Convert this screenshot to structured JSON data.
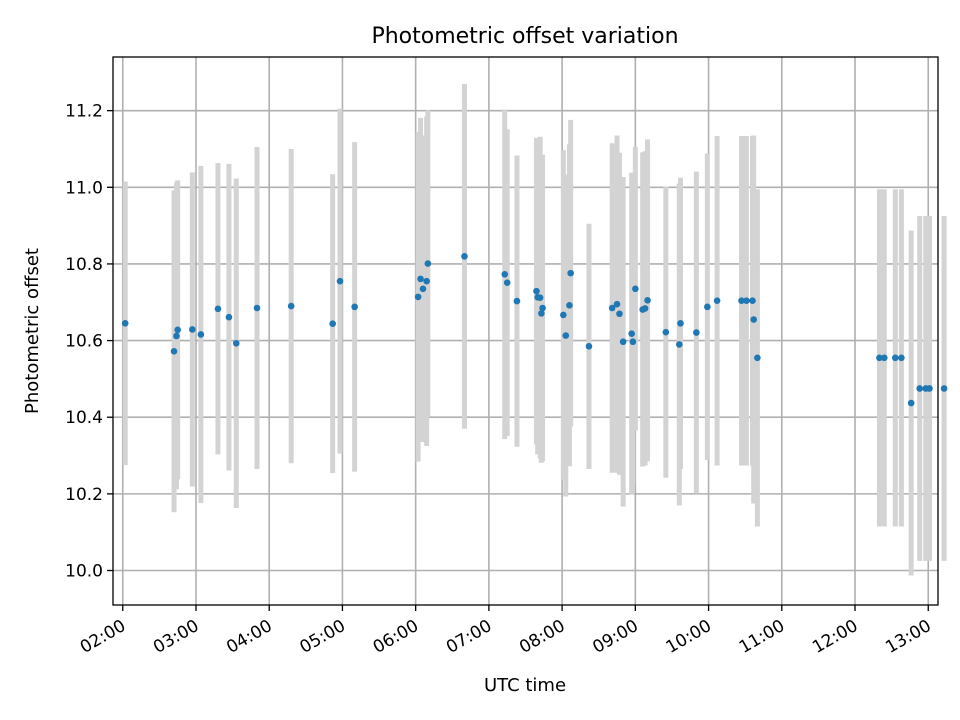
{
  "chart_data": {
    "type": "scatter",
    "title": "Photometric offset variation",
    "xlabel": "UTC time",
    "ylabel": "Photometric offset",
    "x_tick_labels": [
      "02:00",
      "03:00",
      "04:00",
      "05:00",
      "06:00",
      "07:00",
      "08:00",
      "09:00",
      "10:00",
      "11:00",
      "12:00",
      "13:00"
    ],
    "y_tick_labels": [
      "10.0",
      "10.2",
      "10.4",
      "10.6",
      "10.8",
      "11.0",
      "11.2"
    ],
    "xlim": [
      "01:52",
      "13:08"
    ],
    "ylim": [
      9.91,
      11.34
    ],
    "grid": true,
    "colors": {
      "points": "#1f77b4",
      "errorbars": "#d3d3d3",
      "grid": "#b0b0b0"
    },
    "series": [
      {
        "x": [
          "02:02",
          "02:42",
          "02:44",
          "02:45",
          "02:57",
          "03:04",
          "03:18",
          "03:27",
          "03:33",
          "03:50",
          "04:18",
          "04:52",
          "04:58",
          "05:10",
          "06:02",
          "06:04",
          "06:06",
          "06:09",
          "06:10",
          "06:40",
          "07:13",
          "07:15",
          "07:23",
          "07:39",
          "07:40",
          "07:42",
          "07:43",
          "07:44",
          "08:01",
          "08:03",
          "08:06",
          "08:07",
          "08:22",
          "08:41",
          "08:45",
          "08:47",
          "08:50",
          "08:57",
          "08:58",
          "09:00",
          "09:06",
          "09:08",
          "09:10",
          "09:25",
          "09:36",
          "09:37",
          "09:50",
          "09:59",
          "10:07",
          "10:27",
          "10:31",
          "10:36",
          "10:37",
          "10:40",
          "12:20",
          "12:24",
          "12:33",
          "12:38",
          "12:46",
          "12:53",
          "12:58",
          "13:01",
          "13:13"
        ],
        "y": [
          10.645,
          10.572,
          10.612,
          10.628,
          10.629,
          10.616,
          10.683,
          10.661,
          10.593,
          10.685,
          10.69,
          10.644,
          10.755,
          10.688,
          10.714,
          10.761,
          10.735,
          10.755,
          10.801,
          10.82,
          10.773,
          10.751,
          10.703,
          10.729,
          10.713,
          10.712,
          10.671,
          10.685,
          10.667,
          10.613,
          10.692,
          10.776,
          10.585,
          10.685,
          10.695,
          10.67,
          10.597,
          10.618,
          10.597,
          10.735,
          10.681,
          10.684,
          10.705,
          10.622,
          10.59,
          10.645,
          10.621,
          10.688,
          10.704,
          10.704,
          10.704,
          10.704,
          10.655,
          10.555,
          10.555,
          10.555,
          10.555,
          10.555,
          10.437,
          10.475,
          10.475,
          10.475,
          10.475
        ],
        "err": [
          0.37,
          0.42,
          0.4,
          0.39,
          0.41,
          0.44,
          0.38,
          0.4,
          0.43,
          0.42,
          0.41,
          0.39,
          0.45,
          0.43,
          0.43,
          0.42,
          0.4,
          0.43,
          0.4,
          0.45,
          0.43,
          0.4,
          0.38,
          0.4,
          0.41,
          0.42,
          0.39,
          0.4,
          0.43,
          0.42,
          0.42,
          0.4,
          0.32,
          0.43,
          0.44,
          0.42,
          0.43,
          0.42,
          0.37,
          0.37,
          0.41,
          0.41,
          0.42,
          0.38,
          0.42,
          0.38,
          0.42,
          0.4,
          0.43,
          0.43,
          0.43,
          0.43,
          0.48,
          0.44,
          0.44,
          0.44,
          0.44,
          0.44,
          0.45,
          0.45,
          0.45,
          0.45,
          0.45
        ]
      }
    ]
  }
}
